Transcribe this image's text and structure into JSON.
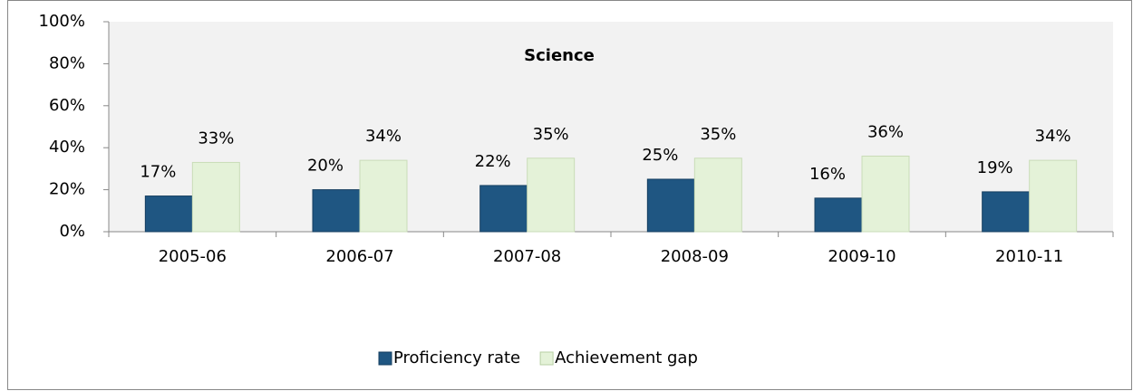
{
  "chart_data": {
    "type": "bar",
    "title": "Science",
    "categories": [
      "2005-06",
      "2006-07",
      "2007-08",
      "2008-09",
      "2009-10",
      "2010-11"
    ],
    "series": [
      {
        "name": "Proficiency rate",
        "color": "#1f5682",
        "values": [
          17,
          20,
          22,
          25,
          16,
          19
        ],
        "value_labels": [
          "17%",
          "20%",
          "22%",
          "25%",
          "16%",
          "19%"
        ]
      },
      {
        "name": "Achievement gap",
        "color": "#e4f2d8",
        "values": [
          33,
          34,
          35,
          35,
          36,
          34
        ],
        "value_labels": [
          "33%",
          "34%",
          "35%",
          "35%",
          "36%",
          "34%"
        ]
      }
    ],
    "ylim": [
      0,
      100
    ],
    "yticks": [
      {
        "value": 0,
        "label": "0%"
      },
      {
        "value": 20,
        "label": "20%"
      },
      {
        "value": 40,
        "label": "40%"
      },
      {
        "value": 60,
        "label": "60%"
      },
      {
        "value": 80,
        "label": "80%"
      },
      {
        "value": 100,
        "label": "100%"
      }
    ],
    "legend": "bottom"
  }
}
